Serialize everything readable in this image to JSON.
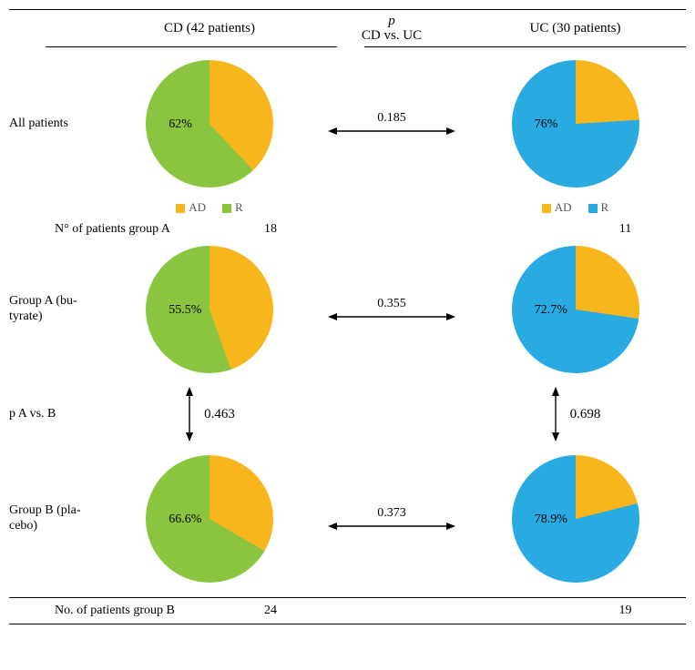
{
  "colors": {
    "AD": "#f7b61c",
    "R_cd": "#8bc53f",
    "R_uc": "#29aae1",
    "line": "#414042",
    "arrow": "#000000"
  },
  "pie_diameter": 140,
  "header": {
    "cd": "CD (42 patients)",
    "uc": "UC (30 patients)",
    "mid_top": "p",
    "mid_bottom": "CD vs. UC"
  },
  "legend": {
    "ad": "AD",
    "r": "R"
  },
  "rows": {
    "all": {
      "label": "All patients",
      "cd_r_pct": 62,
      "cd_label": "62%",
      "uc_r_pct": 76,
      "uc_label": "76%",
      "p_horizontal": "0.185"
    },
    "groupA": {
      "label": "Group A (bu-tyrate)",
      "count_label": "N° of patients group A",
      "count_cd": "18",
      "count_uc": "11",
      "cd_r_pct": 55.5,
      "cd_label": "55.5%",
      "uc_r_pct": 72.7,
      "uc_label": "72.7%",
      "p_horizontal": "0.355"
    },
    "groupB": {
      "label": "Group B (pla-cebo)",
      "count_label": "No. of patients group B",
      "count_cd": "24",
      "count_uc": "19",
      "cd_r_pct": 66.6,
      "cd_label": "66.6%",
      "uc_r_pct": 78.9,
      "uc_label": "78.9%",
      "p_horizontal": "0.373"
    },
    "ab_compare": {
      "label": "p A vs. B",
      "p_cd": "0.463",
      "p_uc": "0.698"
    }
  }
}
